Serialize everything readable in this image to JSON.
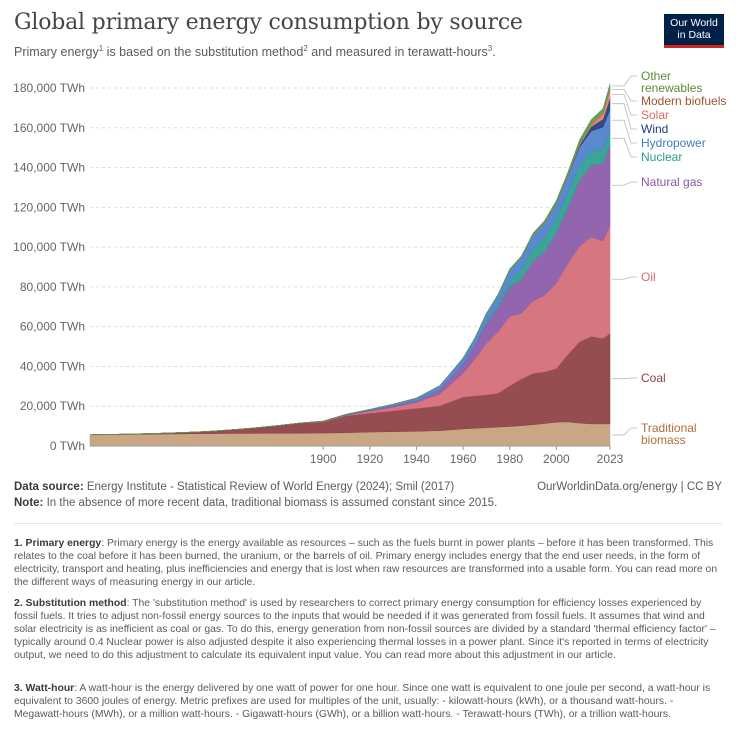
{
  "header": {
    "title": "Global primary energy consumption by source",
    "subtitle_a": "Primary energy",
    "subtitle_sup1": "1",
    "subtitle_b": " is based on the substitution method",
    "subtitle_sup2": "2",
    "subtitle_c": " and measured in terawatt-hours",
    "subtitle_sup3": "3",
    "subtitle_d": ".",
    "logo_line1": "Our World",
    "logo_line2": "in Data"
  },
  "chart_data": {
    "type": "area",
    "stacked": true,
    "x": [
      1800,
      1810,
      1820,
      1830,
      1840,
      1850,
      1860,
      1870,
      1880,
      1890,
      1900,
      1910,
      1920,
      1930,
      1940,
      1950,
      1960,
      1965,
      1970,
      1975,
      1980,
      1985,
      1990,
      1995,
      2000,
      2005,
      2010,
      2015,
      2020,
      2023
    ],
    "xlim": [
      1800,
      2023
    ],
    "x_ticks": [
      "1900",
      "1920",
      "1940",
      "1960",
      "1980",
      "2000",
      "2023"
    ],
    "y_ticks": [
      "0 TWh",
      "20,000 TWh",
      "40,000 TWh",
      "60,000 TWh",
      "80,000 TWh",
      "100,000 TWh",
      "120,000 TWh",
      "140,000 TWh",
      "160,000 TWh",
      "180,000 TWh"
    ],
    "ylim": [
      0,
      180000
    ],
    "grid": "horizontal dashed",
    "legend_placement": "right, inline labels",
    "series": [
      {
        "name": "Traditional biomass",
        "color": "#c4a07a",
        "label_color": "#b46c3c",
        "values": [
          5556,
          5700,
          5850,
          6000,
          6100,
          6200,
          6300,
          6350,
          6400,
          6450,
          6500,
          6700,
          7000,
          7200,
          7400,
          7700,
          8600,
          8900,
          9200,
          9500,
          9800,
          10200,
          10700,
          11300,
          12000,
          12100,
          11500,
          11100,
          11100,
          11100
        ]
      },
      {
        "name": "Coal",
        "color": "#8c3e43",
        "label_color": "#8c3e43",
        "values": [
          97,
          150,
          250,
          400,
          700,
          1100,
          1800,
          2700,
          3800,
          5000,
          5600,
          8500,
          9500,
          10500,
          11500,
          12500,
          16000,
          16300,
          16500,
          17000,
          20500,
          23500,
          25800,
          26000,
          27000,
          34000,
          41000,
          44000,
          43000,
          45500
        ]
      },
      {
        "name": "Oil",
        "color": "#d26a76",
        "label_color": "#d26a76",
        "values": [
          0,
          0,
          0,
          0,
          0,
          0,
          0,
          0,
          0,
          100,
          200,
          300,
          1000,
          1800,
          3000,
          6000,
          12000,
          18500,
          26000,
          31000,
          35000,
          33000,
          36500,
          38500,
          43000,
          46000,
          48000,
          50000,
          49000,
          54500
        ]
      },
      {
        "name": "Natural gas",
        "color": "#8b58a8",
        "label_color": "#8b58a8",
        "values": [
          0,
          0,
          0,
          0,
          0,
          0,
          0,
          0,
          0,
          0,
          100,
          200,
          400,
          600,
          900,
          2000,
          4500,
          6500,
          10000,
          12000,
          15000,
          17000,
          20000,
          22000,
          25000,
          28000,
          33000,
          36000,
          39000,
          40000
        ]
      },
      {
        "name": "Nuclear",
        "color": "#2a9d8f",
        "label_color": "#2a9d8f",
        "values": [
          0,
          0,
          0,
          0,
          0,
          0,
          0,
          0,
          0,
          0,
          0,
          0,
          0,
          0,
          0,
          0,
          100,
          300,
          700,
          1500,
          2600,
          5000,
          6300,
          7000,
          7500,
          7800,
          7700,
          7200,
          7000,
          7200
        ]
      },
      {
        "name": "Hydropower",
        "color": "#4d7fcb",
        "label_color": "#3f7ac4",
        "values": [
          0,
          0,
          0,
          0,
          0,
          0,
          0,
          0,
          0,
          10,
          100,
          300,
          500,
          900,
          1300,
          2100,
          3000,
          3600,
          4200,
          5000,
          5600,
          6100,
          6600,
          7200,
          7400,
          8000,
          9200,
          10100,
          11300,
          11000
        ]
      },
      {
        "name": "Wind",
        "color": "#243a78",
        "label_color": "#1a3a7a",
        "values": [
          0,
          0,
          0,
          0,
          0,
          0,
          0,
          0,
          0,
          0,
          0,
          0,
          0,
          0,
          0,
          0,
          0,
          0,
          0,
          0,
          0,
          0,
          10,
          20,
          80,
          250,
          900,
          2200,
          4000,
          5600
        ]
      },
      {
        "name": "Solar",
        "color": "#e8806e",
        "label_color": "#e46a60",
        "values": [
          0,
          0,
          0,
          0,
          0,
          0,
          0,
          0,
          0,
          0,
          0,
          0,
          0,
          0,
          0,
          0,
          0,
          0,
          0,
          0,
          0,
          0,
          0,
          0,
          5,
          15,
          80,
          620,
          2100,
          3700
        ]
      },
      {
        "name": "Modern biofuels",
        "color": "#b8734f",
        "label_color": "#a0522d",
        "values": [
          0,
          0,
          0,
          0,
          0,
          0,
          0,
          0,
          0,
          0,
          0,
          0,
          0,
          0,
          0,
          0,
          0,
          0,
          0,
          0,
          50,
          150,
          250,
          300,
          300,
          450,
          1000,
          1100,
          1200,
          1400
        ]
      },
      {
        "name": "Other renewables",
        "color": "#4f9a4a",
        "label_color": "#5a8c3a",
        "values": [
          0,
          0,
          0,
          0,
          0,
          0,
          0,
          0,
          0,
          0,
          0,
          0,
          0,
          0,
          0,
          0,
          100,
          150,
          200,
          300,
          500,
          600,
          900,
          1100,
          1200,
          1300,
          1700,
          1900,
          2000,
          2100
        ]
      }
    ]
  },
  "legend_labels": {
    "other_renewables_1": "Other",
    "other_renewables_2": "renewables",
    "modern_biofuels": "Modern biofuels",
    "solar": "Solar",
    "wind": "Wind",
    "hydropower": "Hydropower",
    "nuclear": "Nuclear",
    "natural_gas": "Natural gas",
    "oil": "Oil",
    "coal": "Coal",
    "traditional_biomass_1": "Traditional",
    "traditional_biomass_2": "biomass"
  },
  "sources": {
    "data_source_label": "Data source:",
    "data_source_text": " Energy Institute - Statistical Review of World Energy (2024); Smil (2017)",
    "note_label": "Note:",
    "note_text": " In the absence of more recent data, traditional biomass is assumed constant since 2015.",
    "site": "OurWorldinData.org/energy | CC BY"
  },
  "footnotes": [
    {
      "label": "1. Primary energy",
      "text": ": Primary energy is the energy available as resources – such as the fuels burnt in power plants – before it has been transformed. This relates to the coal before it has been burned, the uranium, or the barrels of oil. Primary energy includes energy that the end user needs, in the form of electricity, transport and heating, plus inefficiencies and energy that is lost when raw resources are transformed into a usable form. You can read more on the different ways of measuring energy in our article."
    },
    {
      "label": "2. Substitution method",
      "text": ": The 'substitution method' is used by researchers to correct primary energy consumption for efficiency losses experienced by fossil fuels. It tries to adjust non-fossil energy sources to the inputs that would be needed if it was generated from fossil fuels. It assumes that wind and solar electricity is as inefficient as coal or gas. To do this, energy generation from non-fossil sources are divided by a standard 'thermal efficiency factor' – typically around 0.4 Nuclear power is also adjusted despite it also experiencing thermal losses in a power plant. Since it's reported in terms of electricity output, we need to do this adjustment to calculate its equivalent input value. You can read more about this adjustment in our article."
    },
    {
      "label": "3. Watt-hour",
      "text": ": A watt-hour is the energy delivered by one watt of power for one hour. Since one watt is equivalent to one joule per second, a watt-hour is equivalent to 3600 joules of energy. Metric prefixes are used for multiples of the unit, usually: - kilowatt-hours (kWh), or a thousand watt-hours. - Megawatt-hours (MWh), or a million watt-hours. - Gigawatt-hours (GWh), or a billion watt-hours. - Terawatt-hours (TWh), or a trillion watt-hours."
    }
  ]
}
